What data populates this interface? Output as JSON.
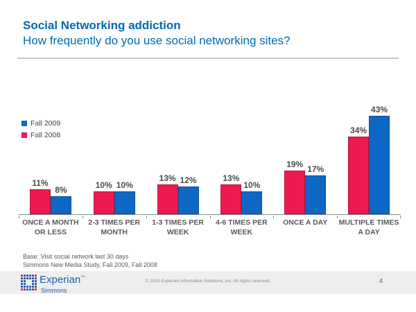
{
  "slide": {
    "title": "Social Networking addiction",
    "subtitle": "How frequently do you use social networking sites?",
    "page_number": "4"
  },
  "legend": {
    "items": [
      {
        "label": "Fall 2009",
        "color": "#0e67c4"
      },
      {
        "label": "Fall 2008",
        "color": "#ec1a50"
      }
    ]
  },
  "chart_data": {
    "type": "bar",
    "title": "",
    "xlabel": "",
    "ylabel": "",
    "grid": false,
    "legend_position": "upper-left",
    "value_suffix": "%",
    "ylim": [
      0,
      48
    ],
    "categories": [
      "ONCE A MONTH OR LESS",
      "2-3 TIMES PER MONTH",
      "1-3 TIMES PER WEEK",
      "4-6 TIMES PER WEEK",
      "ONCE A DAY",
      "MULTIPLE TIMES A DAY"
    ],
    "series": [
      {
        "name": "Fall 2008",
        "color": "#ec1a50",
        "values": [
          11,
          10,
          13,
          13,
          19,
          34
        ]
      },
      {
        "name": "Fall 2009",
        "color": "#0e67c4",
        "values": [
          8,
          10,
          12,
          10,
          17,
          43
        ]
      }
    ]
  },
  "footnote": {
    "line1": "Base: Visit social network last 30 days",
    "line2": "Simmons New Media Study, Fall 2009, Fall 2008"
  },
  "footer": {
    "brand": "Experian",
    "brand_tm": "™",
    "brand_sub": "Simmons",
    "copyright": "© 2010 Experian Information Solutions, Inc.  All rights reserved."
  },
  "colors": {
    "title_blue": "#0069b4",
    "bar_red": "#ec1a50",
    "bar_blue": "#0e67c4",
    "logo_blue": "#2456a4",
    "logo_red": "#e8173d",
    "footer_gray": "#eeeeee"
  }
}
